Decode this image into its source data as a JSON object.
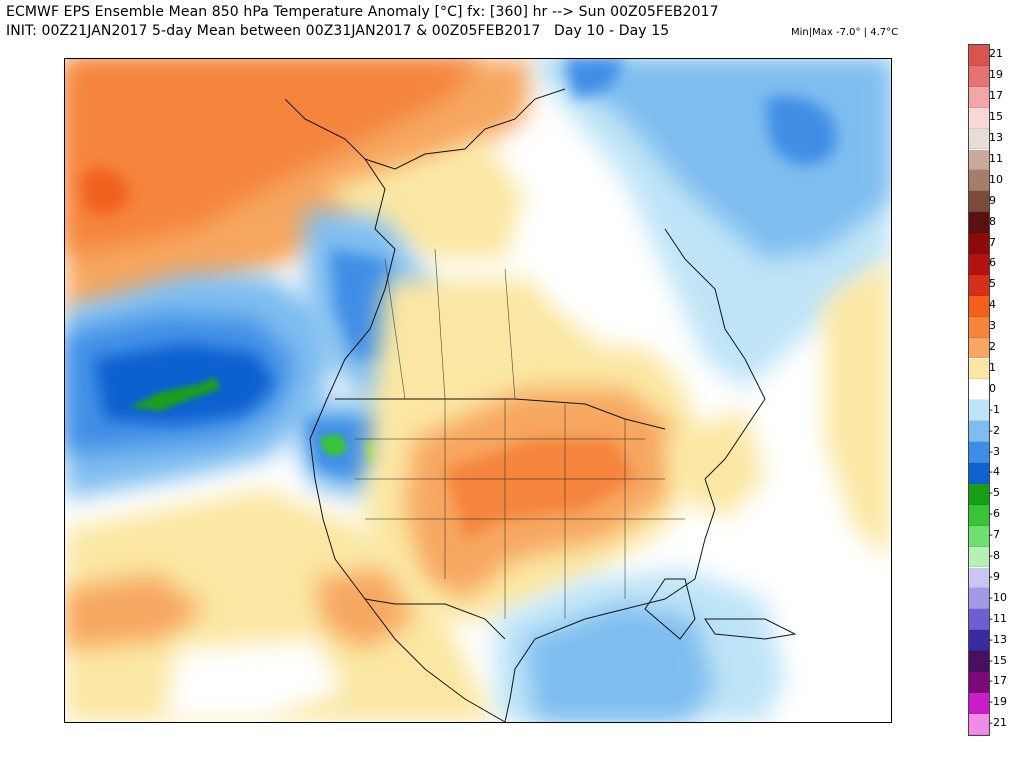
{
  "header": {
    "title_line1": "ECMWF EPS Ensemble Mean 850 hPa Temperature Anomaly [°C] fx: [360] hr --> Sun 00Z05FEB2017",
    "title_line2": "INIT: 00Z21JAN2017 5-day Mean between 00Z31JAN2017 & 00Z05FEB2017   Day 10 - Day 15",
    "minmax": "Min|Max -7.0° | 4.7°C"
  },
  "map": {
    "region": "North America",
    "variable": "850 hPa Temperature Anomaly"
  },
  "colorbar": {
    "labels": [
      "21",
      "19",
      "17",
      "15",
      "13",
      "11",
      "10",
      "9",
      "8",
      "7",
      "6",
      "5",
      "4",
      "3",
      "2",
      "1",
      "0",
      "-1",
      "-2",
      "-3",
      "-4",
      "-5",
      "-6",
      "-7",
      "-8",
      "-9",
      "-10",
      "-11",
      "-13",
      "-15",
      "-17",
      "-19",
      "-21"
    ],
    "colors": [
      "#d9534f",
      "#e57373",
      "#f3a6a6",
      "#f8d7d7",
      "#e8dcd8",
      "#c8a99b",
      "#a67c6a",
      "#7a4a3a",
      "#5a1010",
      "#8b0a0a",
      "#b31212",
      "#d62f1a",
      "#f2601c",
      "#f5843c",
      "#f7a761",
      "#fbe7a3",
      "#ffffff",
      "#bfe4f7",
      "#7fbdf0",
      "#3f8ee6",
      "#1060d0",
      "#1a9e1a",
      "#37c437",
      "#6fe06f",
      "#b5f0b5",
      "#c9c6f0",
      "#a29ae6",
      "#6c60d0",
      "#3a2aa0",
      "#4a1060",
      "#7a0a7a",
      "#c81ec8",
      "#f08ce8"
    ]
  }
}
